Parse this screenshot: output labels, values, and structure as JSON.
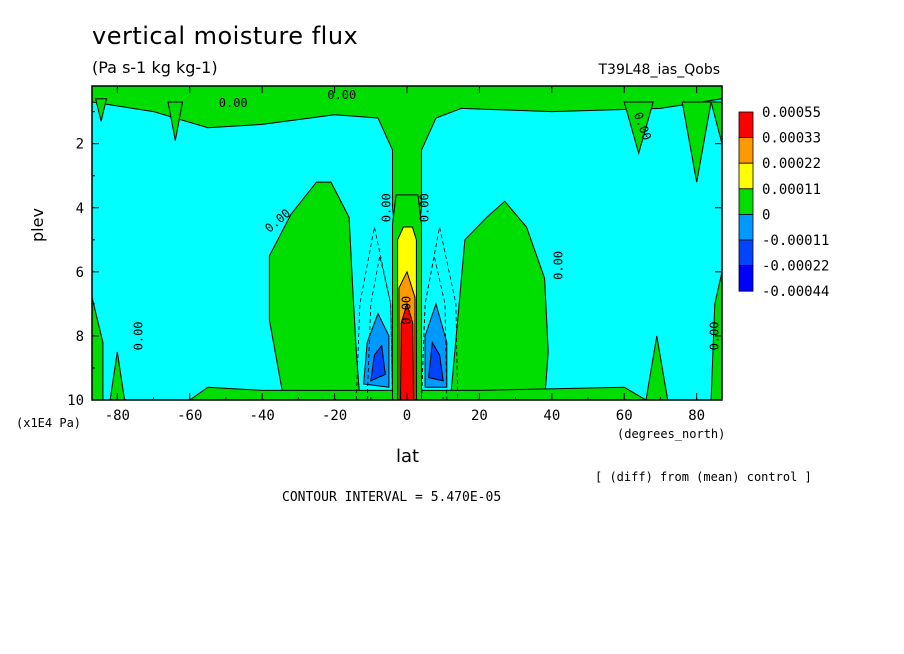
{
  "chart_data": {
    "type": "heatmap",
    "title": "vertical moisture flux",
    "subtitle": "(Pa s-1 kg kg-1)",
    "run_label": "T39L48_ias_Qobs",
    "xlabel": "lat",
    "ylabel": "plev",
    "x_unit": "(degrees_north)",
    "y_unit": "(x1E4 Pa)",
    "xlim": [
      -87,
      87
    ],
    "ylim": [
      10,
      0.2
    ],
    "x_ticks": [
      -80,
      -60,
      -40,
      -20,
      0,
      20,
      40,
      60,
      80
    ],
    "y_ticks": [
      2,
      4,
      6,
      8,
      10
    ],
    "note": "[ (diff) from (mean) control ]",
    "contour_interval": "CONTOUR INTERVAL = 5.470E-05",
    "contour_labels": [
      "0.00",
      "0.00",
      "0.00",
      "0.00",
      "0.00",
      "0.00",
      "0.00",
      "0.00",
      "0.00",
      "0.00"
    ],
    "legend": {
      "labels": [
        "0.00055",
        "0.00033",
        "0.00022",
        "0.00011",
        "0",
        "-0.00011",
        "-0.00022",
        "-0.00044"
      ],
      "colors": [
        "#ff0000",
        "#ff9900",
        "#ffff00",
        "#00dd00",
        "#00ffff",
        "#0099ff",
        "#0044ff",
        "#0000ff"
      ],
      "boundaries": [
        0.00055,
        0.00033,
        0.00022,
        0.00011,
        0,
        -0.00011,
        -0.00022,
        -0.00044
      ]
    }
  }
}
